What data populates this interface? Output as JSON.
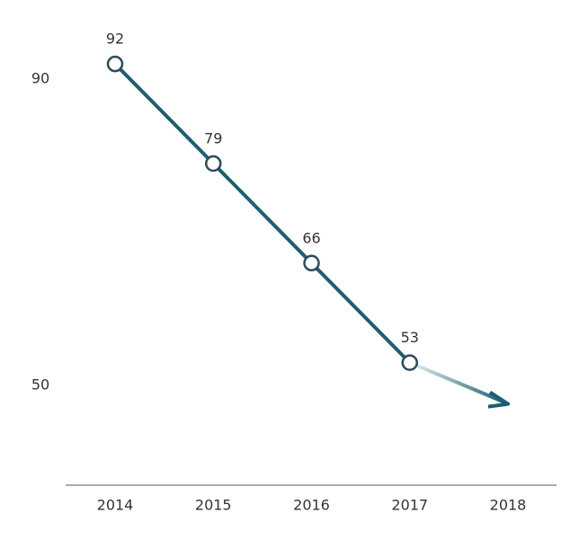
{
  "chart_data": {
    "type": "line",
    "categories": [
      "2014",
      "2015",
      "2016",
      "2017",
      "2018"
    ],
    "values": [
      92,
      79,
      66,
      53,
      null
    ],
    "color": "#1d5e6f",
    "ylim": [
      37,
      98
    ],
    "yticks": [
      50,
      90
    ],
    "grid": false
  }
}
